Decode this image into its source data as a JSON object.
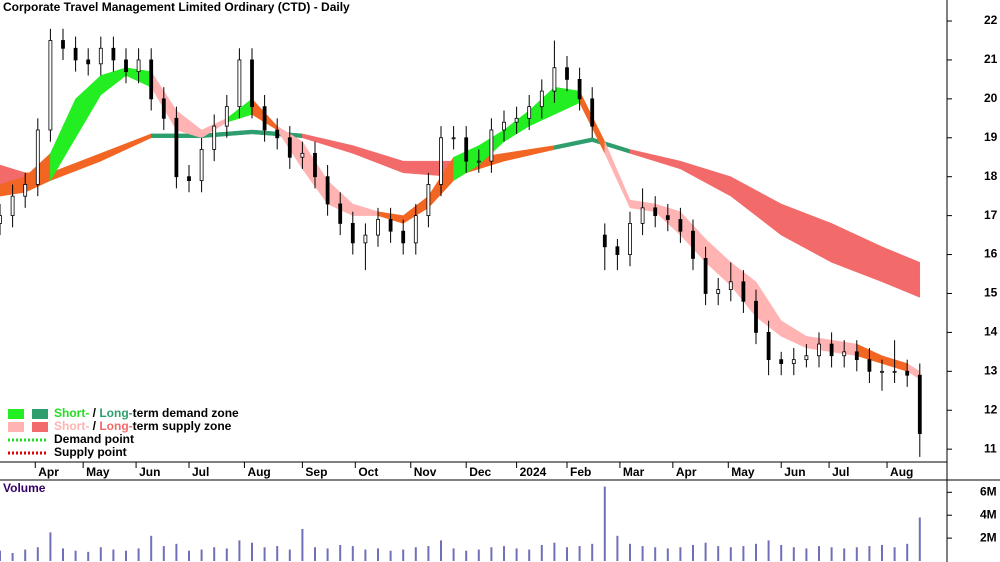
{
  "chart_data": {
    "type": "candlestick",
    "title": "Corporate Travel Management Limited Ordinary (CTD) - Daily",
    "xlim": [
      0,
      375
    ],
    "xticks": [
      {
        "value": 14,
        "label": "Apr"
      },
      {
        "value": 33,
        "label": "May"
      },
      {
        "value": 54,
        "label": "Jun"
      },
      {
        "value": 75,
        "label": "Jul"
      },
      {
        "value": 97,
        "label": "Aug"
      },
      {
        "value": 120,
        "label": "Sep"
      },
      {
        "value": 141,
        "label": "Oct"
      },
      {
        "value": 163,
        "label": "Nov"
      },
      {
        "value": 185,
        "label": "Dec"
      },
      {
        "value": 205,
        "label": "2024"
      },
      {
        "value": 225,
        "label": "Feb"
      },
      {
        "value": 246,
        "label": "Mar"
      },
      {
        "value": 267,
        "label": "Apr"
      },
      {
        "value": 289,
        "label": "May"
      },
      {
        "value": 310,
        "label": "Jun"
      },
      {
        "value": 329,
        "label": "Jul"
      },
      {
        "value": 352,
        "label": "Aug"
      }
    ],
    "ylim": [
      10.67,
      22.54
    ],
    "yticks": [
      11,
      12,
      13,
      14,
      15,
      16,
      17,
      18,
      19,
      20,
      21,
      22
    ],
    "candle_color": "#000000",
    "x": [
      0,
      5,
      10,
      15,
      20,
      25,
      30,
      35,
      40,
      45,
      50,
      55,
      60,
      65,
      70,
      75,
      80,
      85,
      90,
      95,
      100,
      105,
      110,
      115,
      120,
      125,
      130,
      135,
      140,
      145,
      150,
      155,
      160,
      165,
      170,
      175,
      180,
      185,
      190,
      195,
      200,
      205,
      210,
      215,
      220,
      225,
      230,
      235,
      240,
      245,
      250,
      255,
      260,
      265,
      270,
      275,
      280,
      285,
      290,
      295,
      300,
      305,
      310,
      315,
      320,
      325,
      330,
      335,
      340,
      345,
      350,
      355,
      360,
      365
    ],
    "open": [
      16.8,
      17.0,
      17.5,
      17.8,
      19.2,
      21.5,
      21.3,
      21.0,
      20.9,
      21.3,
      21.0,
      20.7,
      21.0,
      20.0,
      19.5,
      18.0,
      17.9,
      18.7,
      19.3,
      19.8,
      21.0,
      19.8,
      19.2,
      19.0,
      18.5,
      18.6,
      18.0,
      17.3,
      16.8,
      16.3,
      16.5,
      16.9,
      16.6,
      16.3,
      17.0,
      17.8,
      19.0,
      19.0,
      18.4,
      18.4,
      19.2,
      19.4,
      19.5,
      19.8,
      20.2,
      20.8,
      20.5,
      20.0,
      16.5,
      16.2,
      16.0,
      16.8,
      17.2,
      17.0,
      16.9,
      16.6,
      15.9,
      15.0,
      15.1,
      15.3,
      14.8,
      14.0,
      13.3,
      13.2,
      13.3,
      13.4,
      13.7,
      13.4,
      13.5,
      13.3,
      13.0,
      13.0,
      13.0,
      12.9
    ],
    "high": [
      17.3,
      17.8,
      18.1,
      19.5,
      21.8,
      21.8,
      21.6,
      21.3,
      21.6,
      21.6,
      21.3,
      21.3,
      21.3,
      20.3,
      19.8,
      18.3,
      19.0,
      19.6,
      20.1,
      21.3,
      21.3,
      20.1,
      19.5,
      19.3,
      18.9,
      18.9,
      18.3,
      17.6,
      17.1,
      16.8,
      17.2,
      17.2,
      16.9,
      17.3,
      18.1,
      19.3,
      19.3,
      19.3,
      18.7,
      19.5,
      19.7,
      19.8,
      20.1,
      20.5,
      21.5,
      21.1,
      20.8,
      20.3,
      16.8,
      16.4,
      17.1,
      17.7,
      17.5,
      17.3,
      17.2,
      16.9,
      16.2,
      15.4,
      15.8,
      15.6,
      15.1,
      14.3,
      13.5,
      13.6,
      13.7,
      14.0,
      14.0,
      13.8,
      13.8,
      13.6,
      13.3,
      13.8,
      13.3,
      13.2
    ],
    "low": [
      16.5,
      16.7,
      17.2,
      17.5,
      18.9,
      21.0,
      20.7,
      20.6,
      20.6,
      20.7,
      20.4,
      20.4,
      19.7,
      19.2,
      17.7,
      17.6,
      17.6,
      18.4,
      19.0,
      19.5,
      19.5,
      18.9,
      18.7,
      18.2,
      18.2,
      17.7,
      17.0,
      16.5,
      16.0,
      15.6,
      16.2,
      16.3,
      16.0,
      16.0,
      16.7,
      17.5,
      18.7,
      18.1,
      18.1,
      18.1,
      18.9,
      19.1,
      19.2,
      19.5,
      19.9,
      20.2,
      19.7,
      19.0,
      15.6,
      15.6,
      15.7,
      16.5,
      16.7,
      16.6,
      16.3,
      15.6,
      14.7,
      14.7,
      14.8,
      14.5,
      13.7,
      12.9,
      12.9,
      12.9,
      13.1,
      13.1,
      13.1,
      13.1,
      13.0,
      12.7,
      12.5,
      12.7,
      12.6,
      10.8
    ],
    "close": [
      17.0,
      17.5,
      17.8,
      19.2,
      21.5,
      21.3,
      21.0,
      20.9,
      21.3,
      21.0,
      20.7,
      21.0,
      20.0,
      19.5,
      18.0,
      17.9,
      18.7,
      19.3,
      19.8,
      21.0,
      19.8,
      19.2,
      19.0,
      18.5,
      18.6,
      18.0,
      17.3,
      16.8,
      16.3,
      16.5,
      16.9,
      16.6,
      16.3,
      17.0,
      17.8,
      19.0,
      19.0,
      18.4,
      18.4,
      19.2,
      19.4,
      19.5,
      19.8,
      20.2,
      20.8,
      20.5,
      20.0,
      19.3,
      16.2,
      16.0,
      16.8,
      17.2,
      17.0,
      16.9,
      16.6,
      15.9,
      15.0,
      15.1,
      15.3,
      14.8,
      14.0,
      13.3,
      13.2,
      13.3,
      13.4,
      13.7,
      13.4,
      13.5,
      13.3,
      13.0,
      13.0,
      13.0,
      12.9,
      11.4
    ],
    "short_term_zone": {
      "x": [
        0,
        10,
        20,
        30,
        40,
        50,
        60,
        70,
        80,
        90,
        100,
        110,
        120,
        130,
        140,
        150,
        160,
        170,
        180,
        190,
        200,
        210,
        220,
        230,
        240,
        250,
        260,
        270,
        280,
        290,
        300,
        310,
        320,
        330,
        340,
        350,
        360,
        365
      ],
      "upper": [
        17.8,
        18.0,
        18.6,
        20.0,
        20.6,
        20.8,
        20.7,
        19.7,
        19.2,
        19.5,
        20.0,
        19.3,
        18.9,
        17.9,
        17.3,
        17.1,
        17.0,
        17.5,
        18.5,
        18.8,
        19.2,
        19.7,
        20.3,
        20.2,
        18.9,
        17.4,
        17.3,
        17.1,
        16.4,
        15.8,
        15.3,
        14.3,
        13.9,
        13.8,
        13.7,
        13.4,
        13.2,
        13.0
      ],
      "lower": [
        17.5,
        17.6,
        17.9,
        19.0,
        20.1,
        20.6,
        20.3,
        19.2,
        19.0,
        19.4,
        19.6,
        19.2,
        18.2,
        17.3,
        17.0,
        17.0,
        16.8,
        17.2,
        17.9,
        18.3,
        18.9,
        19.3,
        19.6,
        19.9,
        18.6,
        17.2,
        17.1,
        16.5,
        15.8,
        15.2,
        14.4,
        13.9,
        13.6,
        13.5,
        13.4,
        13.2,
        13.0,
        12.8
      ],
      "colors": [
        "#f26522",
        "#f26522",
        "#22ee22",
        "#22ee22",
        "#22ee22",
        "#22ee22",
        "#ffb3b3",
        "#ffb3b3",
        "#ffb3b3",
        "#22ee22",
        "#f26522",
        "#ffb3b3",
        "#ffb3b3",
        "#ffb3b3",
        "#ffb3b3",
        "#f26522",
        "#f26522",
        "#f26522",
        "#22ee22",
        "#22ee22",
        "#22ee22",
        "#22ee22",
        "#22ee22",
        "#f26522",
        "#ffb3b3",
        "#ffb3b3",
        "#ffb3b3",
        "#ffb3b3",
        "#ffb3b3",
        "#ffb3b3",
        "#ffb3b3",
        "#ffb3b3",
        "#ffb3b3",
        "#ffb3b3",
        "#f26522",
        "#f26522",
        "#ffb3b3",
        "#ffb3b3"
      ]
    },
    "long_term_zone": {
      "x": [
        0,
        10,
        20,
        40,
        60,
        80,
        100,
        120,
        140,
        160,
        180,
        200,
        220,
        235,
        250,
        270,
        290,
        310,
        330,
        350,
        365
      ],
      "upper": [
        18.3,
        18.1,
        18.1,
        18.6,
        19.1,
        19.1,
        19.2,
        19.1,
        18.8,
        18.4,
        18.4,
        18.6,
        18.8,
        19.0,
        18.7,
        18.4,
        18.0,
        17.3,
        16.8,
        16.2,
        15.8
      ],
      "lower": [
        17.6,
        17.7,
        17.9,
        18.4,
        19.0,
        19.0,
        19.1,
        19.0,
        18.6,
        18.1,
        18.0,
        18.4,
        18.7,
        18.9,
        18.6,
        18.2,
        17.5,
        16.5,
        15.8,
        15.3,
        14.9
      ],
      "colors": [
        "#f26a6a",
        "#f26522",
        "#f26522",
        "#f26522",
        "#2e9e6e",
        "#2e9e6e",
        "#2e9e6e",
        "#f26a6a",
        "#f26a6a",
        "#f26a6a",
        "#f26522",
        "#f26522",
        "#2e9e6e",
        "#2e9e6e",
        "#f26a6a",
        "#f26a6a",
        "#f26a6a",
        "#f26a6a",
        "#f26a6a",
        "#f26a6a",
        "#f26a6a"
      ]
    },
    "legend": [
      {
        "parts": [
          "Short-",
          " / ",
          "Long-",
          "term demand zone"
        ],
        "colors": [
          "#22dd22",
          "#000000",
          "#2e9e6e",
          "#000000"
        ],
        "swatches": [
          "#22ee22",
          "#2e9e6e"
        ]
      },
      {
        "parts": [
          "Short-",
          " / ",
          "Long-",
          "term supply zone"
        ],
        "colors": [
          "#ffb3b3",
          "#000000",
          "#f26a6a",
          "#000000"
        ],
        "swatches": [
          "#ffb3b3",
          "#f26a6a"
        ]
      },
      {
        "parts": [
          "Demand point"
        ],
        "colors": [
          "#000000"
        ],
        "dotted": "#22dd22"
      },
      {
        "parts": [
          "Supply point"
        ],
        "colors": [
          "#000000"
        ],
        "dotted": "#dd0000"
      }
    ],
    "volume": {
      "title": "Volume",
      "color": "#7070b8",
      "ylim": [
        0,
        6900000
      ],
      "yticks": [
        {
          "value": 2000000,
          "label": "2M"
        },
        {
          "value": 4000000,
          "label": "4M"
        },
        {
          "value": 6000000,
          "label": "6M"
        }
      ],
      "values": [
        900000,
        700000,
        1000000,
        1200000,
        2500000,
        1100000,
        900000,
        800000,
        1200000,
        1000000,
        900000,
        1100000,
        2200000,
        1300000,
        1500000,
        900000,
        1000000,
        1200000,
        1100000,
        1800000,
        1600000,
        1200000,
        1300000,
        1000000,
        2800000,
        1200000,
        1100000,
        1400000,
        1300000,
        1000000,
        1100000,
        900000,
        1000000,
        1200000,
        1300000,
        1800000,
        1100000,
        900000,
        1000000,
        1200000,
        1300000,
        1100000,
        1000000,
        1400000,
        1600000,
        1200000,
        1300000,
        1500000,
        6500000,
        2200000,
        1500000,
        1300000,
        1200000,
        1100000,
        1200000,
        1400000,
        1600000,
        1300000,
        1200000,
        1300000,
        1500000,
        1800000,
        1400000,
        1200000,
        1100000,
        1300000,
        1200000,
        1100000,
        1200000,
        1300000,
        1400000,
        1200000,
        1500000,
        3800000
      ]
    }
  }
}
